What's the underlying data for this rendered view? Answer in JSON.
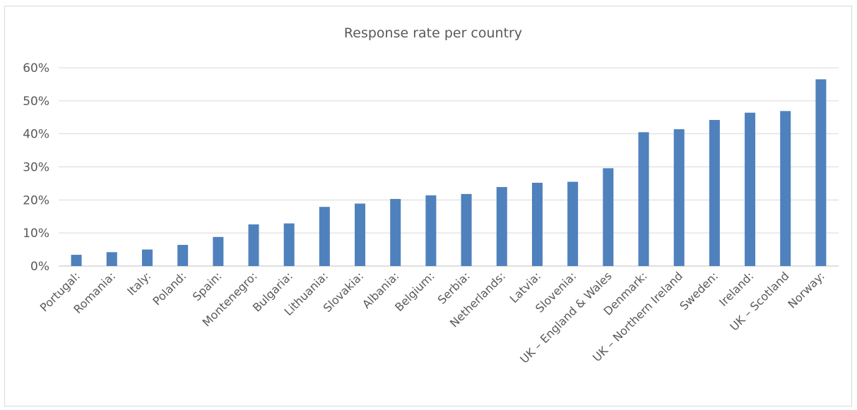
{
  "chart_data": {
    "type": "bar",
    "title": "Response rate per country",
    "xlabel": "",
    "ylabel": "",
    "ylim": [
      0,
      60
    ],
    "yticks": [
      "0%",
      "10%",
      "20%",
      "30%",
      "40%",
      "50%",
      "60%"
    ],
    "grid": true,
    "legend": "none",
    "categories": [
      "Portugal:",
      "Romania:",
      "Italy:",
      "Poland:",
      "Spain:",
      "Montenegro:",
      "Bulgaria:",
      "Lithuania:",
      "Slovakia:",
      "Albania:",
      "Belgium:",
      "Serbia:",
      "Netherlands:",
      "Latvia:",
      "Slovenia:",
      "UK – England & Wales",
      "Denmark:",
      "UK – Northern Ireland",
      "Sweden:",
      "Ireland:",
      "UK – Scotland",
      "Norway:"
    ],
    "values": [
      3.4,
      4.2,
      5.0,
      6.4,
      8.8,
      12.6,
      12.9,
      17.9,
      18.9,
      20.3,
      21.4,
      21.8,
      23.9,
      25.2,
      25.5,
      29.6,
      40.5,
      41.4,
      44.2,
      46.4,
      46.9,
      56.5
    ],
    "bar_color": "#4f81bd"
  }
}
